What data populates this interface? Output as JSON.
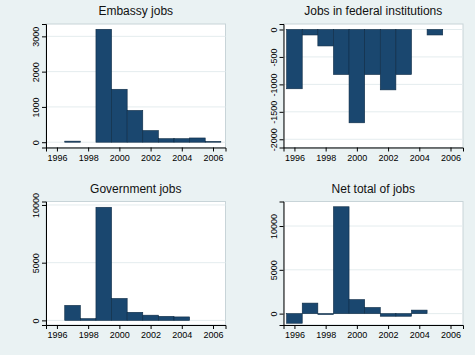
{
  "chart_data": [
    {
      "type": "bar",
      "title": "Embassy jobs",
      "x": [
        1997,
        1999,
        2000,
        2001,
        2002,
        2003,
        2004,
        2005,
        2006
      ],
      "values": [
        30,
        3200,
        1500,
        900,
        330,
        100,
        100,
        120,
        20
      ],
      "xlim": [
        1995.3,
        2006.8
      ],
      "xticks": [
        1996,
        1998,
        2000,
        2002,
        2004,
        2006
      ],
      "ylim": [
        -150,
        3350
      ],
      "yticks": [
        0,
        1000,
        2000,
        3000
      ],
      "color": "#1a476f",
      "grid": true
    },
    {
      "type": "bar",
      "title": "Jobs in federal institutions",
      "x": [
        1996,
        1997,
        1998,
        1999,
        2000,
        2001,
        2002,
        2003,
        2005
      ],
      "values": [
        -1080,
        -100,
        -300,
        -820,
        -1700,
        -820,
        -1100,
        -820,
        -100
      ],
      "xlim": [
        1995.3,
        2006.8
      ],
      "xticks": [
        1996,
        1998,
        2000,
        2002,
        2004,
        2006
      ],
      "ylim": [
        -2150,
        100
      ],
      "yticks": [
        0,
        -500,
        -1000,
        -1500,
        -2000
      ],
      "color": "#1a476f",
      "grid": true
    },
    {
      "type": "bar",
      "title": "Government jobs",
      "x": [
        1997,
        1998,
        1999,
        2000,
        2001,
        2002,
        2003,
        2004
      ],
      "values": [
        1300,
        150,
        9800,
        1900,
        700,
        450,
        350,
        300
      ],
      "xlim": [
        1995.3,
        2006.8
      ],
      "xticks": [
        1996,
        1998,
        2000,
        2002,
        2004,
        2006
      ],
      "ylim": [
        -400,
        10300
      ],
      "yticks": [
        0,
        5000,
        10000
      ],
      "color": "#1a476f",
      "grid": true
    },
    {
      "type": "bar",
      "title": "Net total of jobs",
      "x": [
        1996,
        1997,
        1998,
        1999,
        2000,
        2001,
        2002,
        2003,
        2004
      ],
      "values": [
        -1100,
        1200,
        -100,
        12200,
        1600,
        700,
        -300,
        -300,
        400
      ],
      "xlim": [
        1995.3,
        2006.8
      ],
      "xticks": [
        1996,
        1998,
        2000,
        2002,
        2004,
        2006
      ],
      "ylim": [
        -1300,
        12800
      ],
      "yticks": [
        0,
        5000,
        10000
      ],
      "color": "#1a476f",
      "grid": true
    }
  ]
}
